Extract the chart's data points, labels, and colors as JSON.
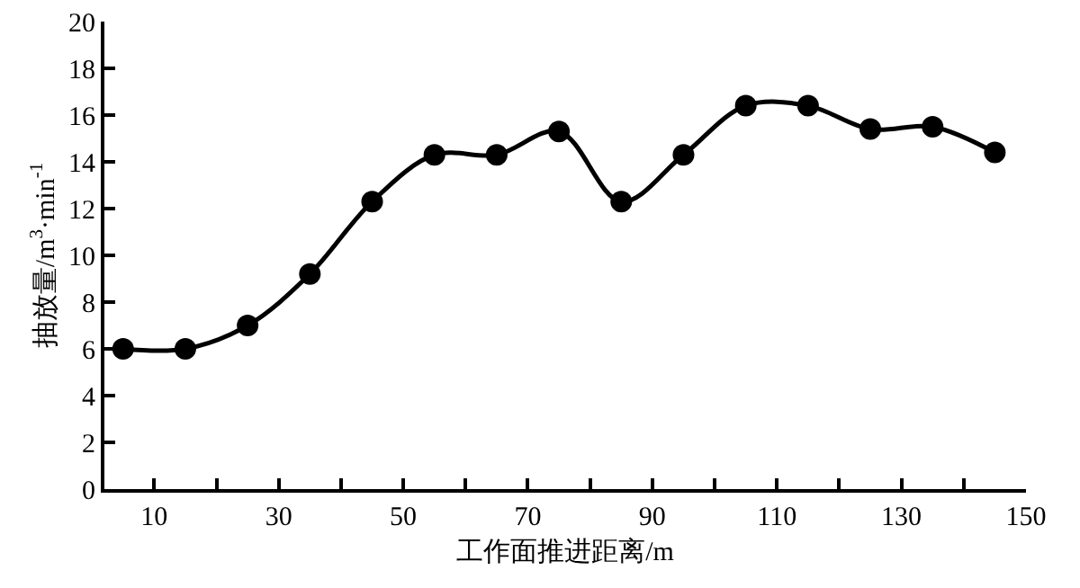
{
  "chart_data": {
    "type": "line",
    "xlabel": "工作面推进距离/m",
    "ylabel": "抽放量/m$^{3}$·min$^{-1}$",
    "x": [
      5,
      15,
      25,
      35,
      45,
      55,
      65,
      75,
      85,
      95,
      105,
      115,
      125,
      135,
      145
    ],
    "series": [
      {
        "color": "#000000",
        "values": [
          6,
          6,
          7,
          9.2,
          12.3,
          14.3,
          14.3,
          15.3,
          12.3,
          14.3,
          16.4,
          16.4,
          15.4,
          15.5,
          14.4
        ]
      }
    ],
    "xlim": [
      2,
      150
    ],
    "xticks": [
      10,
      {
        "value": 20,
        "label": null
      },
      30,
      {
        "value": 40,
        "label": null
      },
      50,
      {
        "value": 60,
        "label": null
      },
      70,
      {
        "value": 80,
        "label": null
      },
      90,
      {
        "value": 100,
        "label": null
      },
      110,
      {
        "value": 120,
        "label": null
      },
      130,
      {
        "value": 140,
        "label": null
      },
      150
    ],
    "ylim": [
      0,
      20
    ],
    "yticks": [
      0,
      2,
      4,
      6,
      8,
      10,
      12,
      14,
      16,
      18,
      20
    ],
    "grid": false,
    "marker": "circle",
    "line_style": "solid"
  }
}
